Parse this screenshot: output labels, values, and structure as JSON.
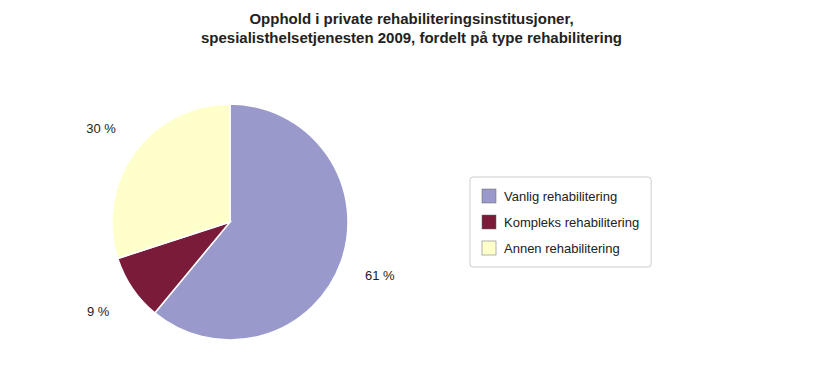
{
  "chart_data": {
    "type": "pie",
    "title": "Opphold i private rehabiliteringsinstitusjoner,\nspesialisthelsetjenesten 2009, fordelt på type rehabilitering",
    "categories": [
      "Vanlig rehabilitering",
      "Kompleks rehabilitering",
      "Annen rehabilitering"
    ],
    "values": [
      61,
      9,
      30
    ],
    "value_labels": [
      "61 %",
      "9 %",
      "30 %"
    ],
    "colors": [
      "#9999CC",
      "#7B1B3A",
      "#FFFFCC"
    ],
    "data_labels": true,
    "legend": "right"
  }
}
